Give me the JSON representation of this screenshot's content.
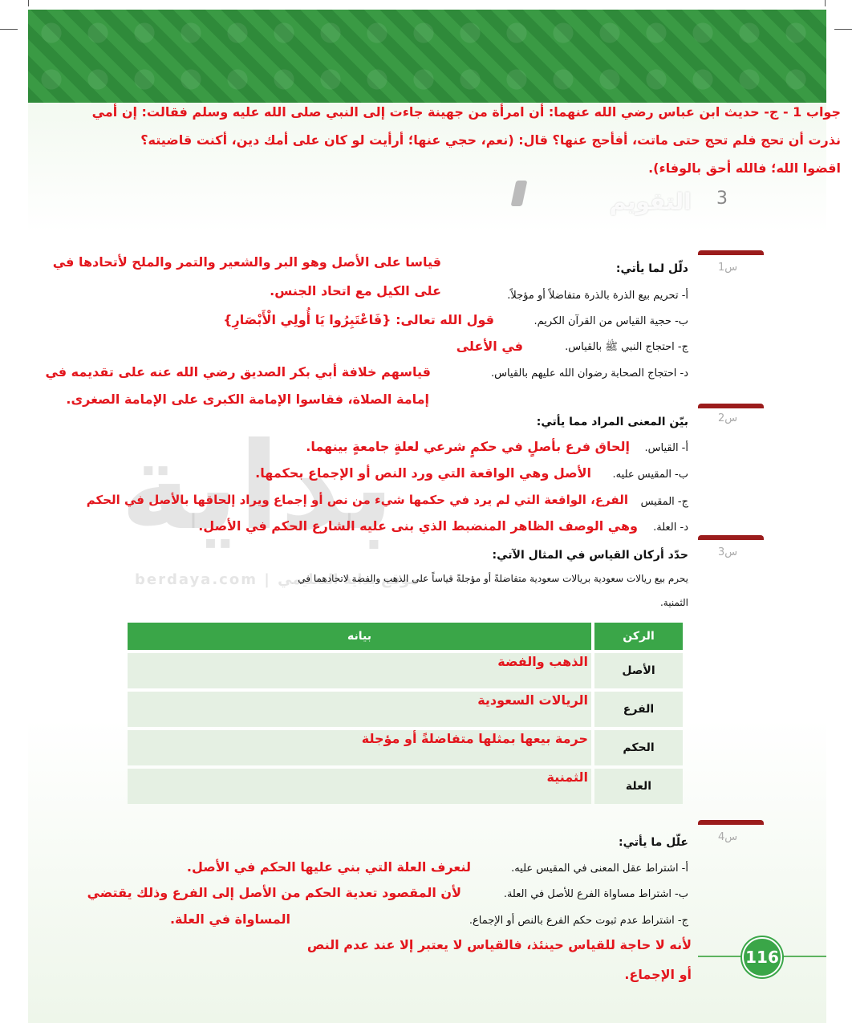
{
  "top_answer": {
    "lines": [
      "جواب 1 - ج- حديث ابن عباس رضي الله عنهما: أن امرأة من جهينة جاءت إلى النبي صلى الله عليه وسلم فقالت: إن أمي",
      "نذرت أن تحج فلم تحج حتى ماتت، أفأحج عنها؟ قال: (نعم، حجي عنها؛ أرأيت لو كان على أمك دين، أكنت قاضيته؟",
      "اقضوا الله؛ فالله أحق بالوفاء)."
    ]
  },
  "section": {
    "number": "3",
    "title": "التقويم"
  },
  "q1": {
    "label": "س1",
    "heading": "دلّل لما يأتي:",
    "answer_top": "قياسا على الأصل وهو البر والشعير والتمر والملح لأتحادها في",
    "items": [
      {
        "text": "أ- تحريم بيع الذرة بالذرة متفاضلاً أو مؤجلاً.",
        "answer": "على الكيل مع اتحاد الجنس."
      },
      {
        "text": "ب- حجية القياس من القرآن الكريم.",
        "answer": "قول الله تعالى: {فَاعْتَبِرُوا يَا أُولِي الْأَبْصَارِ}"
      },
      {
        "text": "ج- احتجاج النبي ﷺ بالقياس.",
        "answer": "في الأعلى"
      },
      {
        "text": "د- احتجاج الصحابة رضوان الله عليهم بالقياس.",
        "answer": "قياسهم خلافة أبي بكر الصديق رضي الله عنه على تقديمه في"
      }
    ],
    "answer_bottom": "إمامة الصلاة، فقاسوا الإمامة الكبرى على الإمامة الصغرى."
  },
  "q2": {
    "label": "س2",
    "heading": "بيّن المعنى المراد مما يأتي:",
    "items": [
      {
        "text": "أ- القياس.",
        "answer": "إلحاق فرع بأصلٍ في حكمٍ شرعي لعلةٍ جامعةٍ بينهما."
      },
      {
        "text": "ب- المقيس عليه.",
        "answer": "الأصل وهي الواقعة التي ورد النص أو الإجماع بحكمها."
      },
      {
        "text": "ج- المقيس",
        "answer": "الفرع، الواقعة التي لم يرد في حكمها شيء من نص أو إجماع ويراد إلحاقها بالأصل في الحكم"
      },
      {
        "text": "د- العلة.",
        "answer": "وهي الوصف الظاهر المنضبط الذي بنى عليه الشارع الحكم في الأصل."
      }
    ]
  },
  "q3": {
    "label": "س3",
    "heading": "حدّد أركان القياس في المثال الآتي:",
    "paragraph_1": "يحرم بيع ريالات سعودية بريالات سعودية متفاضلةً أو مؤجلةً قياساً على الذهب والفضة لاتحادهما في",
    "paragraph_2": "الثمنية.",
    "table": {
      "headers": [
        "الركن",
        "بيانه"
      ],
      "rows": [
        {
          "key": "الأصل",
          "value": "الذهب والفضة"
        },
        {
          "key": "الفرع",
          "value": "الريالات السعودية"
        },
        {
          "key": "الحكم",
          "value": "حرمة بيعها بمثلها متفاضلةً أو مؤجلة"
        },
        {
          "key": "العلة",
          "value": "الثمنية"
        }
      ]
    }
  },
  "q4": {
    "label": "س4",
    "heading": "علّل ما يأتي:",
    "items": [
      {
        "text": "أ- اشتراط عقل المعنى في المقيس عليه.",
        "answer": "لنعرف العلة التي بني عليها الحكم في الأصل."
      },
      {
        "text": "ب- اشتراط مساواة الفرع للأصل في العلة.",
        "answer": "لأن المقصود تعدية الحكم من الأصل إلى الفرع وذلك يقتضي"
      },
      {
        "text": "ج- اشتراط عدم ثبوت حكم الفرع بالنص أو الإجماع.",
        "answer": "المساواة في العلة."
      }
    ],
    "answer_c_line1": "لأنه لا حاجة للقياس حينئذ، فالقياس لا يعتبر إلا عند عدم النص",
    "answer_c_line2": "أو الإجماع."
  },
  "page_number": "116",
  "watermark": {
    "logo": "بداية",
    "site": "berdaya.com | موقع بداية التعليمي"
  },
  "colors": {
    "answer_red": "#e3161d",
    "green": "#3aa648",
    "question_bar": "#9b1c1c"
  }
}
